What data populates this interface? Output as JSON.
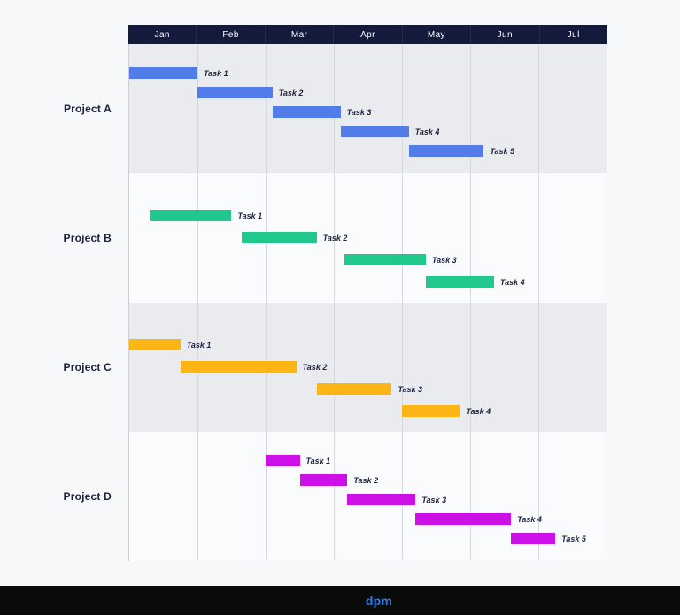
{
  "page": {
    "background": "#f7f8fa"
  },
  "header": {
    "bg": "#141a3c",
    "text_color": "#ffffff"
  },
  "footer": {
    "logo_text": "dpm",
    "bg": "#0a0a0a",
    "logo_color": "#2a7de8"
  },
  "colors": {
    "band_gray": "#e9ebee",
    "band_white": "#fafbfd",
    "gridline": "#d5d8dd",
    "border": "#c9ced6",
    "task_label": "#1c2342",
    "project_label": "#1a2142",
    "project_a": "#527ce8",
    "project_b": "#21c78b",
    "project_c": "#fcb515",
    "project_d": "#ce10e8"
  },
  "chart_data": {
    "type": "gantt",
    "x_unit": "month",
    "x_labels": [
      "Jan",
      "Feb",
      "Mar",
      "Apr",
      "May",
      "Jun",
      "Jul"
    ],
    "x_range": [
      0,
      7
    ],
    "grid": true,
    "row_backgrounds_alternate": [
      "#e9ebee",
      "#fafbfd"
    ],
    "projects": [
      {
        "name": "Project A",
        "color": "#527ce8",
        "tasks": [
          {
            "label": "Task 1",
            "start": 0.0,
            "end": 1.0
          },
          {
            "label": "Task 2",
            "start": 1.0,
            "end": 2.1
          },
          {
            "label": "Task 3",
            "start": 2.1,
            "end": 3.1
          },
          {
            "label": "Task 4",
            "start": 3.1,
            "end": 4.1
          },
          {
            "label": "Task 5",
            "start": 4.1,
            "end": 5.2
          }
        ]
      },
      {
        "name": "Project B",
        "color": "#21c78b",
        "tasks": [
          {
            "label": "Task 1",
            "start": 0.3,
            "end": 1.5
          },
          {
            "label": "Task 2",
            "start": 1.65,
            "end": 2.75
          },
          {
            "label": "Task 3",
            "start": 3.15,
            "end": 4.35
          },
          {
            "label": "Task 4",
            "start": 4.35,
            "end": 5.35
          }
        ]
      },
      {
        "name": "Project C",
        "color": "#fcb515",
        "tasks": [
          {
            "label": "Task 1",
            "start": 0.0,
            "end": 0.75
          },
          {
            "label": "Task 2",
            "start": 0.75,
            "end": 2.45
          },
          {
            "label": "Task 3",
            "start": 2.75,
            "end": 3.85
          },
          {
            "label": "Task 4",
            "start": 4.0,
            "end": 4.85
          }
        ]
      },
      {
        "name": "Project D",
        "color": "#ce10e8",
        "tasks": [
          {
            "label": "Task 1",
            "start": 2.0,
            "end": 2.5
          },
          {
            "label": "Task 2",
            "start": 2.5,
            "end": 3.2
          },
          {
            "label": "Task 3",
            "start": 3.2,
            "end": 4.2
          },
          {
            "label": "Task 4",
            "start": 4.2,
            "end": 5.6
          },
          {
            "label": "Task 5",
            "start": 5.6,
            "end": 6.25
          }
        ]
      }
    ]
  }
}
